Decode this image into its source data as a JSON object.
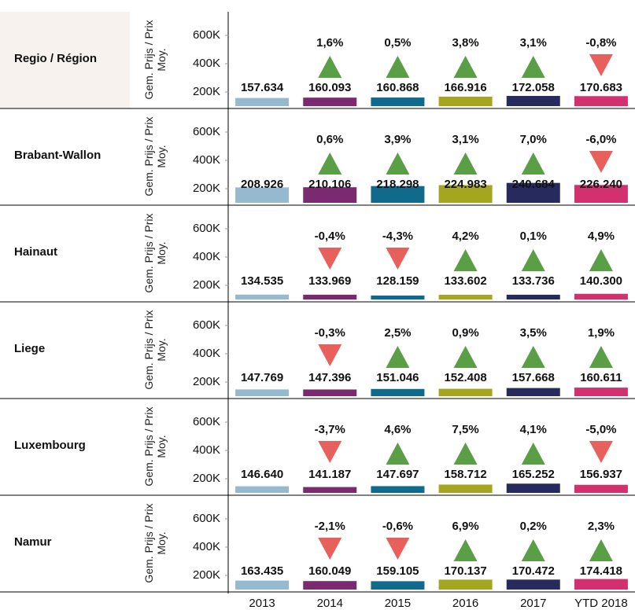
{
  "chart_data": {
    "type": "bar",
    "ylabel": "Gem. Prijs / Prix Moy.",
    "categories": [
      "2013",
      "2014",
      "2015",
      "2016",
      "2017",
      "YTD 2018"
    ],
    "colors": [
      "#95b9cf",
      "#7b2a72",
      "#0f6a8c",
      "#a3a61e",
      "#272a5c",
      "#d3306f"
    ],
    "up_color": "#5a9e45",
    "down_color": "#e8605c",
    "ylim": [
      100000,
      700000
    ],
    "yticks": [
      {
        "value": 200000,
        "label": "200K"
      },
      {
        "value": 400000,
        "label": "400K"
      },
      {
        "value": 600000,
        "label": "600K"
      }
    ],
    "panels": [
      {
        "title": "Regio / Région",
        "values": [
          157634,
          160093,
          160868,
          166916,
          172058,
          170683
        ],
        "value_labels": [
          "157.634",
          "160.093",
          "160.868",
          "166.916",
          "172.058",
          "170.683"
        ],
        "changes": [
          null,
          1.6,
          0.5,
          3.8,
          3.1,
          -0.8
        ],
        "change_labels": [
          null,
          "1,6%",
          "0,5%",
          "3,8%",
          "3,1%",
          "-0,8%"
        ]
      },
      {
        "title": "Brabant-Wallon",
        "values": [
          208926,
          210106,
          218298,
          224983,
          240684,
          226240
        ],
        "value_labels": [
          "208.926",
          "210.106",
          "218.298",
          "224.983",
          "240.684",
          "226.240"
        ],
        "changes": [
          null,
          0.6,
          3.9,
          3.1,
          7.0,
          -6.0
        ],
        "change_labels": [
          null,
          "0,6%",
          "3,9%",
          "3,1%",
          "7,0%",
          "-6,0%"
        ]
      },
      {
        "title": "Hainaut",
        "values": [
          134535,
          133969,
          128159,
          133602,
          133736,
          140300
        ],
        "value_labels": [
          "134.535",
          "133.969",
          "128.159",
          "133.602",
          "133.736",
          "140.300"
        ],
        "changes": [
          null,
          -0.4,
          -4.3,
          4.2,
          0.1,
          4.9
        ],
        "change_labels": [
          null,
          "-0,4%",
          "-4,3%",
          "4,2%",
          "0,1%",
          "4,9%"
        ]
      },
      {
        "title": "Liege",
        "values": [
          147769,
          147396,
          151046,
          152408,
          157668,
          160611
        ],
        "value_labels": [
          "147.769",
          "147.396",
          "151.046",
          "152.408",
          "157.668",
          "160.611"
        ],
        "changes": [
          null,
          -0.3,
          2.5,
          0.9,
          3.5,
          1.9
        ],
        "change_labels": [
          null,
          "-0,3%",
          "2,5%",
          "0,9%",
          "3,5%",
          "1,9%"
        ]
      },
      {
        "title": "Luxembourg",
        "values": [
          146640,
          141187,
          147697,
          158712,
          165252,
          156937
        ],
        "value_labels": [
          "146.640",
          "141.187",
          "147.697",
          "158.712",
          "165.252",
          "156.937"
        ],
        "changes": [
          null,
          -3.7,
          4.6,
          7.5,
          4.1,
          -5.0
        ],
        "change_labels": [
          null,
          "-3,7%",
          "4,6%",
          "7,5%",
          "4,1%",
          "-5,0%"
        ]
      },
      {
        "title": "Namur",
        "values": [
          163435,
          160049,
          159105,
          170137,
          170472,
          174418
        ],
        "value_labels": [
          "163.435",
          "160.049",
          "159.105",
          "170.137",
          "170.472",
          "174.418"
        ],
        "changes": [
          null,
          -2.1,
          -0.6,
          6.9,
          0.2,
          2.3
        ],
        "change_labels": [
          null,
          "-2,1%",
          "-0,6%",
          "6,9%",
          "0,2%",
          "2,3%"
        ]
      }
    ]
  }
}
